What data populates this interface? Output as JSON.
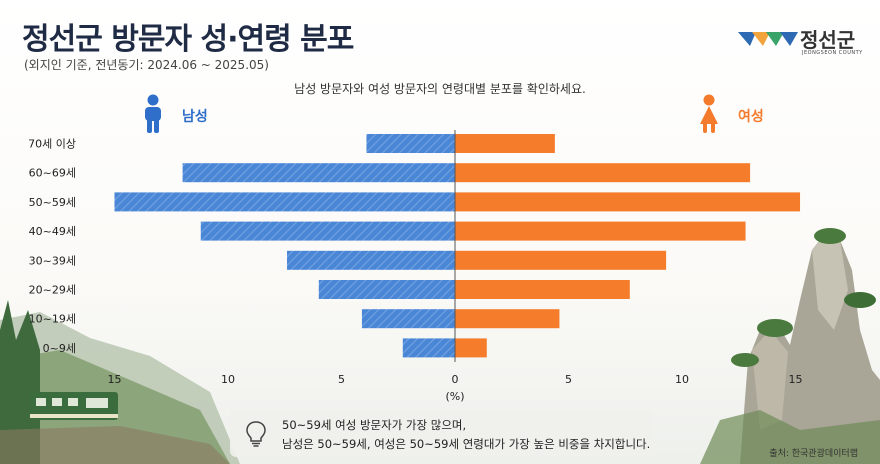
{
  "header": {
    "title": "정선군 방문자 성·연령 분포",
    "subtitle": "(외지인 기준, 전년동기: 2024.06 ~ 2025.05)",
    "description": "남성 방문자와 여성 방문자의 연령대별 분포를 확인하세요."
  },
  "logo": {
    "name": "정선군",
    "sub": "JEONGSEON COUNTY"
  },
  "legend": {
    "male": "남성",
    "female": "여성"
  },
  "colors": {
    "male": "#4a86d6",
    "female": "#f57c2a",
    "title": "#1f2b44"
  },
  "chart_data": {
    "type": "bar",
    "orientation": "horizontal",
    "layout": "population-pyramid",
    "categories": [
      "70세 이상",
      "60~69세",
      "50~59세",
      "40~49세",
      "30~39세",
      "20~29세",
      "10~19세",
      "0~9세"
    ],
    "series": [
      {
        "name": "남성",
        "values": [
          3.9,
          12.0,
          15.0,
          11.2,
          7.4,
          6.0,
          4.1,
          2.3
        ]
      },
      {
        "name": "여성",
        "values": [
          4.4,
          13.0,
          15.2,
          12.8,
          9.3,
          7.7,
          4.6,
          1.4
        ]
      }
    ],
    "xlabel": "(%)",
    "xticks": [
      "15",
      "10",
      "5",
      "0",
      "5",
      "10",
      "15"
    ],
    "xlim": [
      -15.5,
      15.5
    ],
    "grid": false,
    "legend": "top"
  },
  "note": {
    "line1": "50~59세 여성 방문자가 가장 많으며,",
    "line2": "남성은 50~59세, 여성은 50~59세 연령대가 가장 높은 비중을 차지합니다."
  },
  "source": "출처: 한국관광데이터랩"
}
